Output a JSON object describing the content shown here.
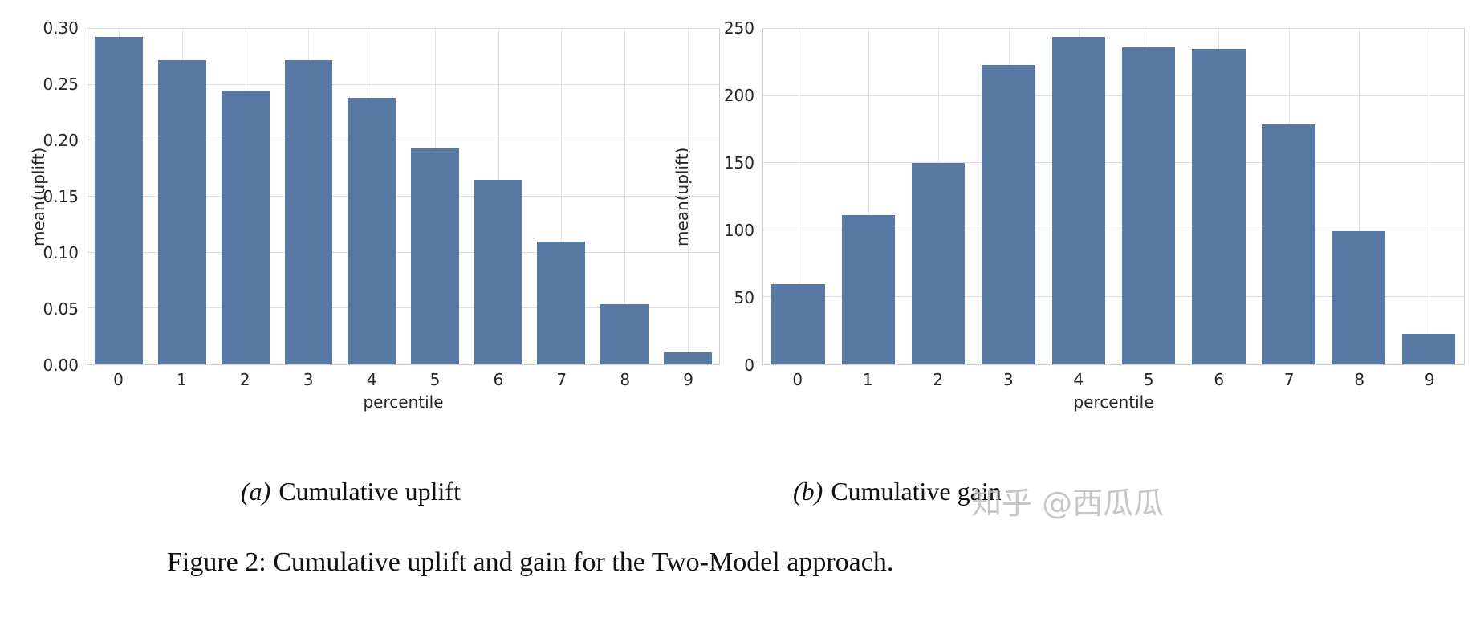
{
  "figure": {
    "subcaptions": [
      {
        "prefix": "(a)",
        "label": "Cumulative uplift"
      },
      {
        "prefix": "(b)",
        "label": "Cumulative gain"
      }
    ],
    "caption": "Figure 2: Cumulative uplift and gain for the Two-Model approach.",
    "watermark": "知乎 @西瓜瓜"
  },
  "colors": {
    "bar": "#5878a4",
    "gridline": "#dddddd",
    "plot_border": "#cfcfcf",
    "watermark": "#b9b9b9"
  },
  "chart_data": [
    {
      "type": "bar",
      "title": "Cumulative uplift",
      "xlabel": "percentile",
      "ylabel": "mean(uplift)",
      "categories": [
        "0",
        "1",
        "2",
        "3",
        "4",
        "5",
        "6",
        "7",
        "8",
        "9"
      ],
      "values": [
        0.293,
        0.272,
        0.245,
        0.272,
        0.238,
        0.193,
        0.165,
        0.11,
        0.054,
        0.011
      ],
      "ylim": [
        0,
        0.3
      ],
      "yticks": [
        0,
        0.05,
        0.1,
        0.15,
        0.2,
        0.25,
        0.3
      ],
      "ytick_labels": [
        "0.00",
        "0.05",
        "0.10",
        "0.15",
        "0.20",
        "0.25",
        "0.30"
      ],
      "bar_color": "#5878a4",
      "grid": true,
      "legend": "none"
    },
    {
      "type": "bar",
      "title": "Cumulative gain",
      "xlabel": "percentile",
      "ylabel": "mean(uplift)",
      "categories": [
        "0",
        "1",
        "2",
        "3",
        "4",
        "5",
        "6",
        "7",
        "8",
        "9"
      ],
      "values": [
        60,
        111,
        150,
        223,
        244,
        236,
        235,
        179,
        99,
        23
      ],
      "ylim": [
        0,
        250
      ],
      "yticks": [
        0,
        50,
        100,
        150,
        200,
        250
      ],
      "ytick_labels": [
        "0",
        "50",
        "100",
        "150",
        "200",
        "250"
      ],
      "bar_color": "#5878a4",
      "grid": true,
      "legend": "none"
    }
  ]
}
